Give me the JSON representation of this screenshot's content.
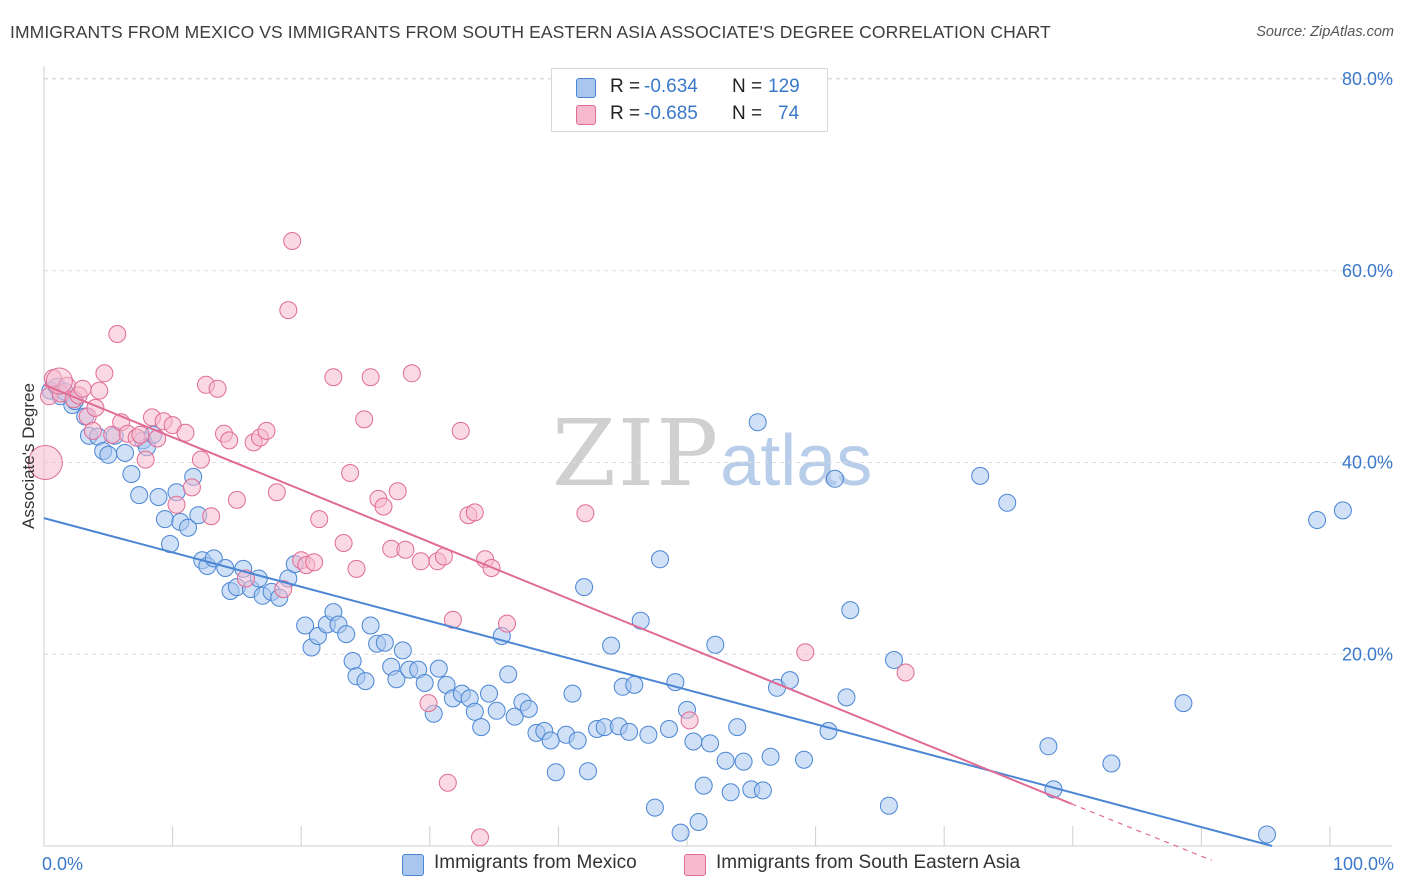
{
  "title": "IMMIGRANTS FROM MEXICO VS IMMIGRANTS FROM SOUTH EASTERN ASIA ASSOCIATE'S DEGREE CORRELATION CHART",
  "source": "Source: ZipAtlas.com",
  "watermark": {
    "zip": "ZIP",
    "atlas": "atlas"
  },
  "colors": {
    "blue": "#4a86d4",
    "blue_fill": "#a9c6ef",
    "pink": "#e06c95",
    "pink_fill": "#f6b9cd",
    "tick": "#3b78c9"
  },
  "legend": {
    "rows": [
      {
        "r_label": "R =",
        "r_value": "-0.634",
        "n_label": "N =",
        "n_value": "129"
      },
      {
        "r_label": "R =",
        "r_value": "-0.685",
        "n_label": "N =",
        "n_value": "74"
      }
    ]
  },
  "chart_data": {
    "type": "scatter",
    "title": "IMMIGRANTS FROM MEXICO VS IMMIGRANTS FROM SOUTH EASTERN ASIA ASSOCIATE'S DEGREE CORRELATION CHART",
    "xlabel": "",
    "ylabel": "Associate's Degree",
    "xlim": [
      0,
      100
    ],
    "ylim": [
      0,
      80
    ],
    "x_tick_labels": [
      "0.0%",
      "100.0%"
    ],
    "y_ticks": [
      20,
      40,
      60,
      80
    ],
    "y_tick_labels": [
      "20.0%",
      "40.0%",
      "60.0%",
      "80.0%"
    ],
    "grid": "horizontal dashed",
    "legend_position": "top-center",
    "series": [
      {
        "name": "Immigrants from Mexico",
        "color": "#4a86d4",
        "R": -0.634,
        "N": 129,
        "trend": {
          "x": [
            0,
            95.5
          ],
          "y": [
            34.2,
            0
          ]
        },
        "points": [
          [
            0.5,
            47.5
          ],
          [
            1.0,
            47.9
          ],
          [
            1.3,
            46.9
          ],
          [
            1.6,
            47.4
          ],
          [
            2.2,
            46.0
          ],
          [
            2.4,
            46.4
          ],
          [
            3.2,
            44.8
          ],
          [
            3.5,
            42.8
          ],
          [
            4.2,
            42.7
          ],
          [
            4.6,
            41.2
          ],
          [
            5.0,
            40.8
          ],
          [
            5.5,
            42.8
          ],
          [
            6.3,
            41.0
          ],
          [
            6.8,
            38.8
          ],
          [
            7.4,
            36.6
          ],
          [
            7.7,
            42.3
          ],
          [
            8.0,
            41.6
          ],
          [
            8.5,
            42.9
          ],
          [
            8.9,
            36.4
          ],
          [
            9.4,
            34.1
          ],
          [
            9.8,
            31.5
          ],
          [
            10.3,
            36.9
          ],
          [
            10.6,
            33.8
          ],
          [
            11.2,
            33.2
          ],
          [
            11.6,
            38.5
          ],
          [
            12.0,
            34.5
          ],
          [
            12.3,
            29.8
          ],
          [
            12.7,
            29.2
          ],
          [
            13.2,
            30.0
          ],
          [
            14.1,
            29.0
          ],
          [
            14.5,
            26.6
          ],
          [
            15.0,
            27.0
          ],
          [
            15.5,
            28.9
          ],
          [
            16.1,
            26.8
          ],
          [
            16.7,
            27.9
          ],
          [
            17.0,
            26.1
          ],
          [
            17.7,
            26.5
          ],
          [
            18.3,
            25.9
          ],
          [
            19.0,
            27.9
          ],
          [
            19.5,
            29.4
          ],
          [
            20.3,
            23.0
          ],
          [
            20.8,
            20.7
          ],
          [
            21.3,
            21.9
          ],
          [
            22.0,
            23.1
          ],
          [
            22.5,
            24.4
          ],
          [
            22.9,
            23.1
          ],
          [
            23.5,
            22.1
          ],
          [
            24.0,
            19.3
          ],
          [
            24.3,
            17.7
          ],
          [
            25.0,
            17.2
          ],
          [
            25.4,
            23.0
          ],
          [
            25.9,
            21.1
          ],
          [
            26.5,
            21.2
          ],
          [
            27.0,
            18.7
          ],
          [
            27.4,
            17.4
          ],
          [
            27.9,
            20.4
          ],
          [
            28.4,
            18.4
          ],
          [
            29.1,
            18.4
          ],
          [
            29.6,
            17.0
          ],
          [
            30.3,
            13.8
          ],
          [
            30.7,
            18.5
          ],
          [
            31.3,
            16.8
          ],
          [
            31.8,
            15.4
          ],
          [
            32.5,
            15.9
          ],
          [
            33.1,
            15.4
          ],
          [
            33.5,
            14.0
          ],
          [
            34.0,
            12.4
          ],
          [
            34.6,
            15.9
          ],
          [
            35.2,
            14.1
          ],
          [
            35.6,
            21.9
          ],
          [
            36.1,
            17.9
          ],
          [
            36.6,
            13.5
          ],
          [
            37.2,
            15.0
          ],
          [
            37.7,
            14.3
          ],
          [
            38.3,
            11.8
          ],
          [
            38.9,
            12.0
          ],
          [
            39.4,
            11.0
          ],
          [
            39.8,
            7.7
          ],
          [
            40.6,
            11.6
          ],
          [
            41.1,
            15.9
          ],
          [
            41.5,
            11.0
          ],
          [
            42.0,
            27.0
          ],
          [
            42.3,
            7.8
          ],
          [
            43.0,
            12.2
          ],
          [
            43.6,
            12.4
          ],
          [
            44.1,
            20.9
          ],
          [
            44.7,
            12.5
          ],
          [
            45.0,
            16.6
          ],
          [
            45.5,
            11.9
          ],
          [
            45.9,
            16.8
          ],
          [
            46.4,
            23.5
          ],
          [
            47.0,
            11.6
          ],
          [
            47.5,
            4.0
          ],
          [
            47.9,
            29.9
          ],
          [
            48.6,
            12.2
          ],
          [
            49.1,
            17.1
          ],
          [
            49.5,
            1.4
          ],
          [
            50.0,
            14.2
          ],
          [
            50.5,
            10.9
          ],
          [
            50.9,
            2.5
          ],
          [
            51.3,
            6.3
          ],
          [
            51.8,
            10.7
          ],
          [
            52.2,
            21.0
          ],
          [
            53.0,
            8.9
          ],
          [
            53.4,
            5.6
          ],
          [
            53.9,
            12.4
          ],
          [
            54.4,
            8.8
          ],
          [
            55.0,
            5.9
          ],
          [
            55.5,
            44.2
          ],
          [
            55.9,
            5.8
          ],
          [
            56.5,
            9.3
          ],
          [
            57.0,
            16.5
          ],
          [
            58.0,
            17.3
          ],
          [
            59.1,
            9.0
          ],
          [
            61.0,
            12.0
          ],
          [
            61.5,
            38.3
          ],
          [
            62.4,
            15.5
          ],
          [
            62.7,
            24.6
          ],
          [
            65.7,
            4.2
          ],
          [
            66.1,
            19.4
          ],
          [
            72.8,
            38.6
          ],
          [
            74.9,
            35.8
          ],
          [
            78.1,
            10.4
          ],
          [
            78.5,
            5.9
          ],
          [
            83.0,
            8.6
          ],
          [
            88.6,
            14.9
          ],
          [
            95.1,
            1.2
          ],
          [
            99.0,
            34.0
          ],
          [
            101.0,
            35.0
          ]
        ]
      },
      {
        "name": "Immigrants from South Eastern Asia",
        "color": "#e06c95",
        "R": -0.685,
        "N": 74,
        "trend": {
          "x": [
            0,
            79.9
          ],
          "y": [
            48.1,
            4.4
          ]
        },
        "trend_dashed_extension": {
          "x": [
            79.9,
            90.8
          ],
          "y": [
            4.4,
            -1.5
          ]
        },
        "points": [
          [
            0.4,
            46.9
          ],
          [
            0.7,
            48.8
          ],
          [
            1.3,
            47.2
          ],
          [
            1.8,
            48.0
          ],
          [
            2.3,
            46.6
          ],
          [
            2.7,
            47.0
          ],
          [
            3.0,
            47.7
          ],
          [
            3.4,
            44.8
          ],
          [
            3.8,
            43.3
          ],
          [
            4.0,
            45.7
          ],
          [
            4.3,
            47.5
          ],
          [
            4.7,
            49.3
          ],
          [
            5.3,
            42.9
          ],
          [
            5.7,
            53.4
          ],
          [
            6.0,
            44.2
          ],
          [
            6.5,
            43.0
          ],
          [
            7.2,
            42.6
          ],
          [
            7.5,
            42.9
          ],
          [
            7.9,
            40.3
          ],
          [
            8.4,
            44.7
          ],
          [
            8.8,
            42.5
          ],
          [
            9.3,
            44.3
          ],
          [
            10.0,
            43.9
          ],
          [
            10.3,
            35.6
          ],
          [
            11.0,
            43.1
          ],
          [
            11.5,
            37.4
          ],
          [
            12.2,
            40.3
          ],
          [
            12.6,
            48.1
          ],
          [
            13.0,
            34.4
          ],
          [
            13.5,
            47.7
          ],
          [
            14.0,
            43.0
          ],
          [
            14.4,
            42.3
          ],
          [
            15.0,
            36.1
          ],
          [
            15.7,
            27.9
          ],
          [
            16.3,
            42.1
          ],
          [
            16.8,
            42.6
          ],
          [
            17.3,
            43.3
          ],
          [
            18.1,
            36.9
          ],
          [
            18.6,
            26.8
          ],
          [
            19.0,
            55.9
          ],
          [
            19.3,
            63.1
          ],
          [
            20.0,
            29.8
          ],
          [
            20.4,
            29.3
          ],
          [
            21.0,
            29.6
          ],
          [
            21.4,
            34.1
          ],
          [
            22.5,
            48.9
          ],
          [
            23.3,
            31.6
          ],
          [
            23.8,
            38.9
          ],
          [
            24.3,
            28.9
          ],
          [
            24.9,
            44.5
          ],
          [
            25.4,
            48.9
          ],
          [
            26.0,
            36.2
          ],
          [
            26.4,
            35.4
          ],
          [
            27.0,
            31.0
          ],
          [
            27.5,
            37.0
          ],
          [
            28.1,
            30.9
          ],
          [
            28.6,
            49.3
          ],
          [
            29.3,
            29.7
          ],
          [
            29.9,
            14.9
          ],
          [
            30.6,
            29.7
          ],
          [
            31.1,
            30.2
          ],
          [
            31.4,
            6.6
          ],
          [
            31.8,
            23.6
          ],
          [
            32.4,
            43.3
          ],
          [
            33.0,
            34.5
          ],
          [
            33.5,
            34.8
          ],
          [
            33.9,
            0.9
          ],
          [
            34.3,
            29.9
          ],
          [
            34.8,
            29.0
          ],
          [
            36.0,
            23.2
          ],
          [
            42.1,
            34.7
          ],
          [
            50.2,
            13.1
          ],
          [
            59.2,
            20.2
          ],
          [
            67.0,
            18.1
          ]
        ]
      }
    ]
  },
  "bottom_legend": [
    {
      "label": "Immigrants from Mexico"
    },
    {
      "label": "Immigrants from South Eastern Asia"
    }
  ]
}
